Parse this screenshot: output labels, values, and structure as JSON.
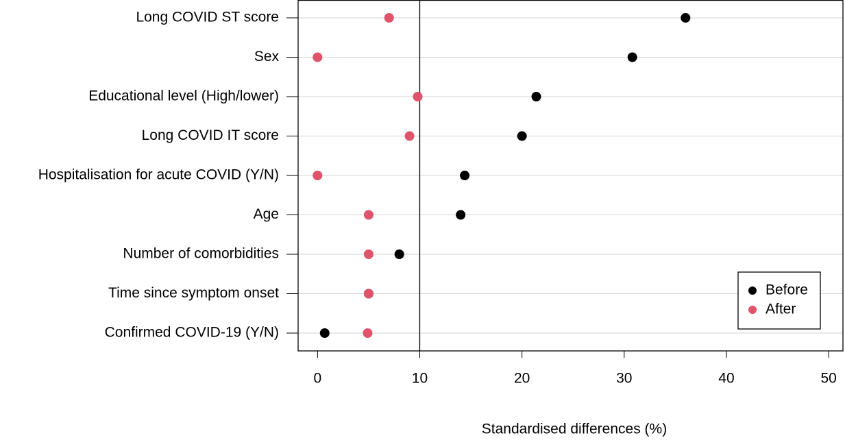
{
  "chart_data": {
    "type": "dot",
    "xlabel": "Standardised differences (%)",
    "categories": [
      "Long COVID ST score",
      "Sex",
      "Educational level (High/lower)",
      "Long COVID IT score",
      "Hospitalisation for acute COVID (Y/N)",
      "Age",
      "Number of comorbidities",
      "Time since symptom onset",
      "Confirmed COVID-19 (Y/N)"
    ],
    "series": [
      {
        "name": "Before",
        "color": "#000000",
        "values": [
          36,
          30.8,
          21.4,
          20,
          14.4,
          14,
          8,
          5,
          0.7
        ]
      },
      {
        "name": "After",
        "color": "#df536b",
        "values": [
          7,
          0,
          9.8,
          9,
          0,
          5,
          5,
          5,
          4.9
        ]
      }
    ],
    "xlim": [
      -1.9,
      51.4
    ],
    "xticks": [
      0,
      10,
      20,
      30,
      40,
      50
    ],
    "reference_line": 10,
    "grid": true,
    "legend": "bottom-right"
  }
}
